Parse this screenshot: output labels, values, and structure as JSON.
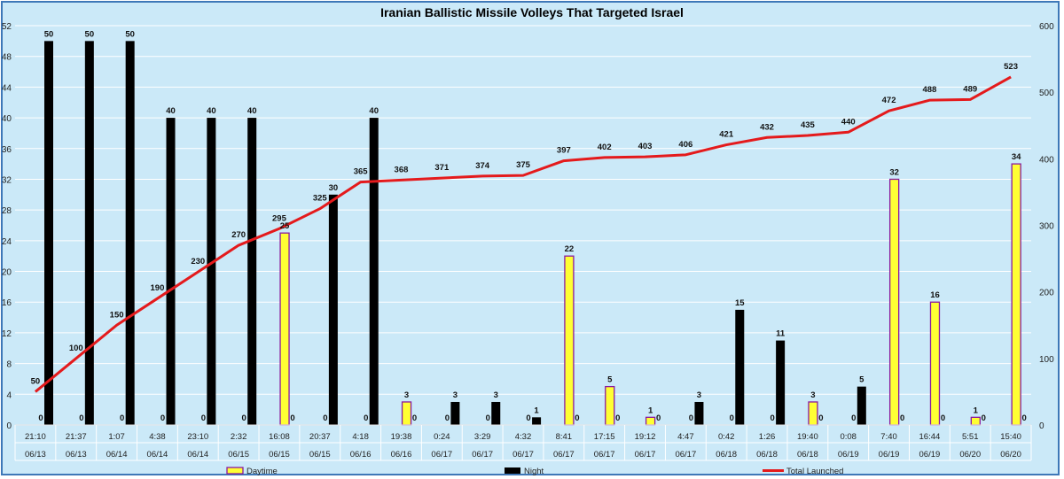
{
  "colors": {
    "background": "#cbe9f8",
    "border": "#3e78b8",
    "gridline": "#ffffff",
    "daytime_fill": "#ffff33",
    "daytime_stroke": "#8a1a9e",
    "night_fill": "#000000",
    "total_line": "#e41a1c"
  },
  "chart_data": {
    "type": "bar",
    "title": "Iranian Ballistic Missile Volleys That Targeted Israel",
    "xlabel": "",
    "ylabel": "",
    "categories": [
      [
        "21:10",
        "06/13"
      ],
      [
        "21:37",
        "06/13"
      ],
      [
        "1:07",
        "06/14"
      ],
      [
        "4:38",
        "06/14"
      ],
      [
        "23:10",
        "06/14"
      ],
      [
        "2:32",
        "06/15"
      ],
      [
        "16:08",
        "06/15"
      ],
      [
        "20:37",
        "06/15"
      ],
      [
        "4:18",
        "06/16"
      ],
      [
        "19:38",
        "06/16"
      ],
      [
        "0:24",
        "06/17"
      ],
      [
        "3:29",
        "06/17"
      ],
      [
        "4:32",
        "06/17"
      ],
      [
        "8:41",
        "06/17"
      ],
      [
        "17:15",
        "06/17"
      ],
      [
        "19:12",
        "06/17"
      ],
      [
        "4:47",
        "06/17"
      ],
      [
        "0:42",
        "06/18"
      ],
      [
        "1:26",
        "06/18"
      ],
      [
        "19:40",
        "06/18"
      ],
      [
        "0:08",
        "06/19"
      ],
      [
        "7:40",
        "06/19"
      ],
      [
        "16:44",
        "06/19"
      ],
      [
        "5:51",
        "06/20"
      ],
      [
        "15:40",
        "06/20"
      ]
    ],
    "series": [
      {
        "name": "Daytime",
        "type": "bar",
        "axis": "left",
        "values": [
          0,
          0,
          0,
          0,
          0,
          0,
          25,
          0,
          0,
          3,
          0,
          0,
          0,
          22,
          5,
          1,
          0,
          0,
          0,
          3,
          0,
          32,
          16,
          1,
          34
        ]
      },
      {
        "name": "Night",
        "type": "bar",
        "axis": "left",
        "values": [
          50,
          50,
          50,
          40,
          40,
          40,
          0,
          30,
          40,
          0,
          3,
          3,
          1,
          0,
          0,
          0,
          3,
          15,
          11,
          0,
          5,
          0,
          0,
          0,
          0
        ]
      },
      {
        "name": "Total Launched",
        "type": "line",
        "axis": "right",
        "values": [
          50,
          100,
          150,
          190,
          230,
          270,
          295,
          325,
          365,
          368,
          371,
          374,
          375,
          397,
          402,
          403,
          406,
          421,
          432,
          435,
          440,
          472,
          488,
          489,
          523
        ]
      }
    ],
    "ylim_left": [
      0,
      52
    ],
    "yticks_left": [
      0,
      4,
      8,
      12,
      16,
      20,
      24,
      28,
      32,
      36,
      40,
      44,
      48,
      52
    ],
    "ylim_right": [
      0,
      600
    ],
    "yticks_right": [
      0,
      100,
      200,
      300,
      400,
      500,
      600
    ],
    "grid": true,
    "legend_position": "bottom"
  }
}
